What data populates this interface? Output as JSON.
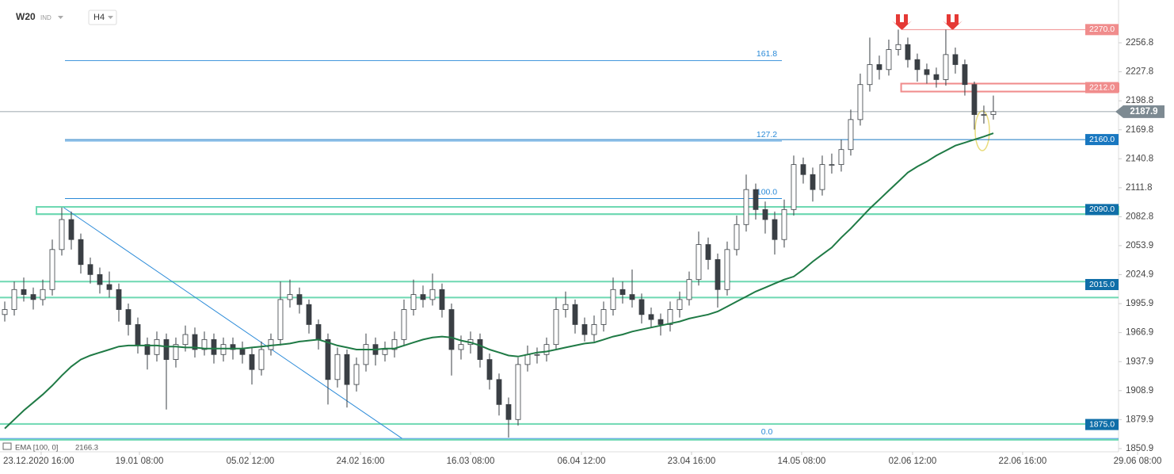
{
  "chart_data": {
    "type": "candlestick",
    "symbol": "W20",
    "market": "IND",
    "interval": "H4",
    "ylim": [
      1847.7,
      2299.6
    ],
    "yticks": [
      1850.9,
      1879.9,
      1908.9,
      1937.9,
      1966.9,
      1995.9,
      2024.9,
      2053.9,
      2082.8,
      2111.8,
      2140.8,
      2169.8,
      2198.8,
      2227.8,
      2256.8
    ],
    "xlim": [
      -0.5,
      117.17
    ],
    "xticks": [
      {
        "value": 3.83,
        "label": "23.12.2020  16:00"
      },
      {
        "value": 14.17,
        "label": "19.01  08:00"
      },
      {
        "value": 25.83,
        "label": "05.02  12:00"
      },
      {
        "value": 37.42,
        "label": "24.02  16:00"
      },
      {
        "value": 49,
        "label": "16.03  08:00"
      },
      {
        "value": 60.67,
        "label": "06.04  12:00"
      },
      {
        "value": 72.25,
        "label": "23.04  16:00"
      },
      {
        "value": 83.83,
        "label": "14.05  08:00"
      },
      {
        "value": 95.5,
        "label": "02.06  12:00"
      },
      {
        "value": 107.08,
        "label": "22.06  16:00"
      },
      {
        "value": 119.17,
        "label": "29.06  08:00"
      }
    ],
    "up_color": "#ffffff",
    "down_color": "#3a3f44",
    "wick_color": "#3a3f44",
    "ohlc": {
      "open": [
        1985,
        1990,
        2010,
        2005,
        2000,
        2010,
        2050,
        2080,
        2060,
        2035,
        2025,
        2015,
        2010,
        1990,
        1975,
        1955,
        1945,
        1960,
        1940,
        1955,
        1965,
        1950,
        1960,
        1945,
        1955,
        1950,
        1945,
        1930,
        1950,
        1960,
        2000,
        2005,
        1995,
        1975,
        1960,
        1920,
        1945,
        1915,
        1935,
        1955,
        1945,
        1950,
        1960,
        1990,
        2005,
        2000,
        2010,
        1990,
        1950,
        1955,
        1960,
        1940,
        1920,
        1895,
        1880,
        1935,
        1945,
        1945,
        1955,
        1990,
        1995,
        1975,
        1965,
        1975,
        1990,
        2010,
        2005,
        2000,
        1985,
        1980,
        1975,
        1990,
        2000,
        2020,
        2055,
        2040,
        2010,
        2050,
        2075,
        2110,
        2090,
        2080,
        2060,
        2090,
        2135,
        2125,
        2110,
        2135,
        2135,
        2150,
        2180,
        2215,
        2235,
        2230,
        2250,
        2255,
        2240,
        2230,
        2225,
        2220,
        2245,
        2235,
        2215,
        2185,
        2185
      ],
      "high": [
        1998,
        2018,
        2022,
        2012,
        2020,
        2060,
        2092,
        2088,
        2066,
        2042,
        2032,
        2028,
        2016,
        1996,
        1982,
        1962,
        1968,
        1966,
        1962,
        1974,
        1972,
        1968,
        1966,
        1962,
        1962,
        1958,
        1952,
        1958,
        1966,
        2018,
        2020,
        2012,
        2000,
        1980,
        1966,
        1952,
        1950,
        1942,
        1966,
        1962,
        1958,
        1968,
        2000,
        2020,
        2014,
        2026,
        2016,
        1996,
        1964,
        1968,
        1966,
        1946,
        1926,
        1902,
        1942,
        1954,
        1952,
        1962,
        2002,
        2008,
        2000,
        1982,
        1984,
        1998,
        2022,
        2018,
        2030,
        2006,
        1992,
        1986,
        1998,
        2008,
        2028,
        2068,
        2062,
        2046,
        2058,
        2084,
        2125,
        2116,
        2098,
        2088,
        2100,
        2144,
        2142,
        2132,
        2144,
        2146,
        2160,
        2190,
        2226,
        2262,
        2244,
        2260,
        2270,
        2262,
        2246,
        2236,
        2232,
        2270,
        2252,
        2240,
        2218,
        2194,
        2204
      ],
      "low": [
        1978,
        1984,
        1998,
        1990,
        1994,
        2004,
        2044,
        2050,
        2026,
        2016,
        2006,
        2002,
        1978,
        1964,
        1946,
        1930,
        1938,
        1890,
        1932,
        1948,
        1942,
        1944,
        1936,
        1938,
        1940,
        1936,
        1915,
        1924,
        1944,
        1954,
        1992,
        1986,
        1966,
        1950,
        1895,
        1912,
        1892,
        1908,
        1928,
        1934,
        1938,
        1942,
        1954,
        1984,
        1992,
        1994,
        1982,
        1924,
        1940,
        1946,
        1932,
        1910,
        1884,
        1862,
        1874,
        1928,
        1936,
        1938,
        1950,
        1982,
        1966,
        1958,
        1958,
        1968,
        1984,
        1996,
        1992,
        1976,
        1972,
        1964,
        1968,
        1982,
        1994,
        2014,
        2030,
        1992,
        2004,
        2044,
        2068,
        2080,
        2066,
        2045,
        2052,
        2084,
        2116,
        2098,
        2104,
        2126,
        2128,
        2144,
        2174,
        2208,
        2220,
        2224,
        2244,
        2232,
        2218,
        2216,
        2212,
        2214,
        2226,
        2204,
        2170,
        2176,
        2180
      ],
      "close": [
        1990,
        2010,
        2005,
        2000,
        2010,
        2050,
        2080,
        2060,
        2035,
        2025,
        2015,
        2010,
        1990,
        1975,
        1955,
        1945,
        1960,
        1940,
        1955,
        1965,
        1950,
        1960,
        1945,
        1955,
        1950,
        1945,
        1930,
        1950,
        1960,
        2000,
        2005,
        1995,
        1975,
        1960,
        1920,
        1945,
        1915,
        1935,
        1955,
        1945,
        1950,
        1960,
        1990,
        2005,
        2000,
        2010,
        1990,
        1950,
        1955,
        1960,
        1940,
        1920,
        1895,
        1880,
        1935,
        1945,
        1945,
        1955,
        1990,
        1995,
        1975,
        1965,
        1975,
        1990,
        2010,
        2005,
        2000,
        1985,
        1980,
        1975,
        1990,
        2000,
        2020,
        2055,
        2040,
        2010,
        2050,
        2075,
        2110,
        2090,
        2080,
        2060,
        2090,
        2135,
        2125,
        2110,
        2135,
        2135,
        2150,
        2180,
        2215,
        2235,
        2230,
        2250,
        2255,
        2240,
        2230,
        2225,
        2220,
        2245,
        2235,
        2215,
        2185,
        2185,
        2188
      ]
    },
    "ema": {
      "name": "EMA [100, 0]",
      "color": "#1f7a45",
      "values": [
        1871,
        1880,
        1889,
        1897,
        1905,
        1914,
        1924,
        1933,
        1940,
        1944,
        1947,
        1950,
        1953,
        1954,
        1954,
        1954,
        1954,
        1953,
        1953,
        1952,
        1952,
        1951,
        1951,
        1951,
        1951,
        1951,
        1952,
        1953,
        1954,
        1955,
        1956,
        1958,
        1959,
        1960,
        1957,
        1954,
        1952,
        1950,
        1950,
        1950,
        1951,
        1951,
        1954,
        1957,
        1960,
        1962,
        1963,
        1962,
        1959,
        1957,
        1954,
        1950,
        1947,
        1944,
        1943,
        1945,
        1947,
        1948,
        1950,
        1952,
        1954,
        1956,
        1957,
        1960,
        1963,
        1965,
        1968,
        1970,
        1972,
        1974,
        1976,
        1978,
        1981,
        1983,
        1985,
        1988,
        1993,
        1998,
        2003,
        2008,
        2012,
        2016,
        2020,
        2023,
        2030,
        2038,
        2045,
        2052,
        2062,
        2071,
        2081,
        2091,
        2100,
        2109,
        2118,
        2127,
        2133,
        2138,
        2144,
        2149,
        2154,
        2157,
        2160,
        2163,
        2166.3
      ]
    },
    "current_price": 2187.9,
    "levels": [
      {
        "value": 2270,
        "label": "2270.0",
        "color": "#f08c8c"
      },
      {
        "value": 2212,
        "label": "2212.0",
        "color": "#f08c8c",
        "band": [
          2208,
          2216
        ]
      },
      {
        "value": 2160,
        "label": "2160.0",
        "color": "#1877c0"
      },
      {
        "value": 2090,
        "label": "2090.0",
        "color": "#0f6ea8",
        "band": [
          2085.4,
          2092.7
        ]
      },
      {
        "value": 2015,
        "label": "2015.0",
        "color": "#0f6ea8",
        "band": [
          2002,
          2018
        ]
      },
      {
        "value": 1875,
        "label": "1875.0",
        "color": "#0f6ea8",
        "band": [
          1859.7,
          1875.5
        ]
      }
    ],
    "fibonacci": [
      {
        "ratio": "161.8",
        "price": 2239
      },
      {
        "ratio": "127.2",
        "price": 2158.5
      },
      {
        "ratio": "100.0",
        "price": 2101
      },
      {
        "ratio": "0.0",
        "price": 1861
      }
    ],
    "trendline": {
      "x": [
        6.2,
        41.8
      ],
      "y": [
        2092,
        1861
      ]
    }
  }
}
